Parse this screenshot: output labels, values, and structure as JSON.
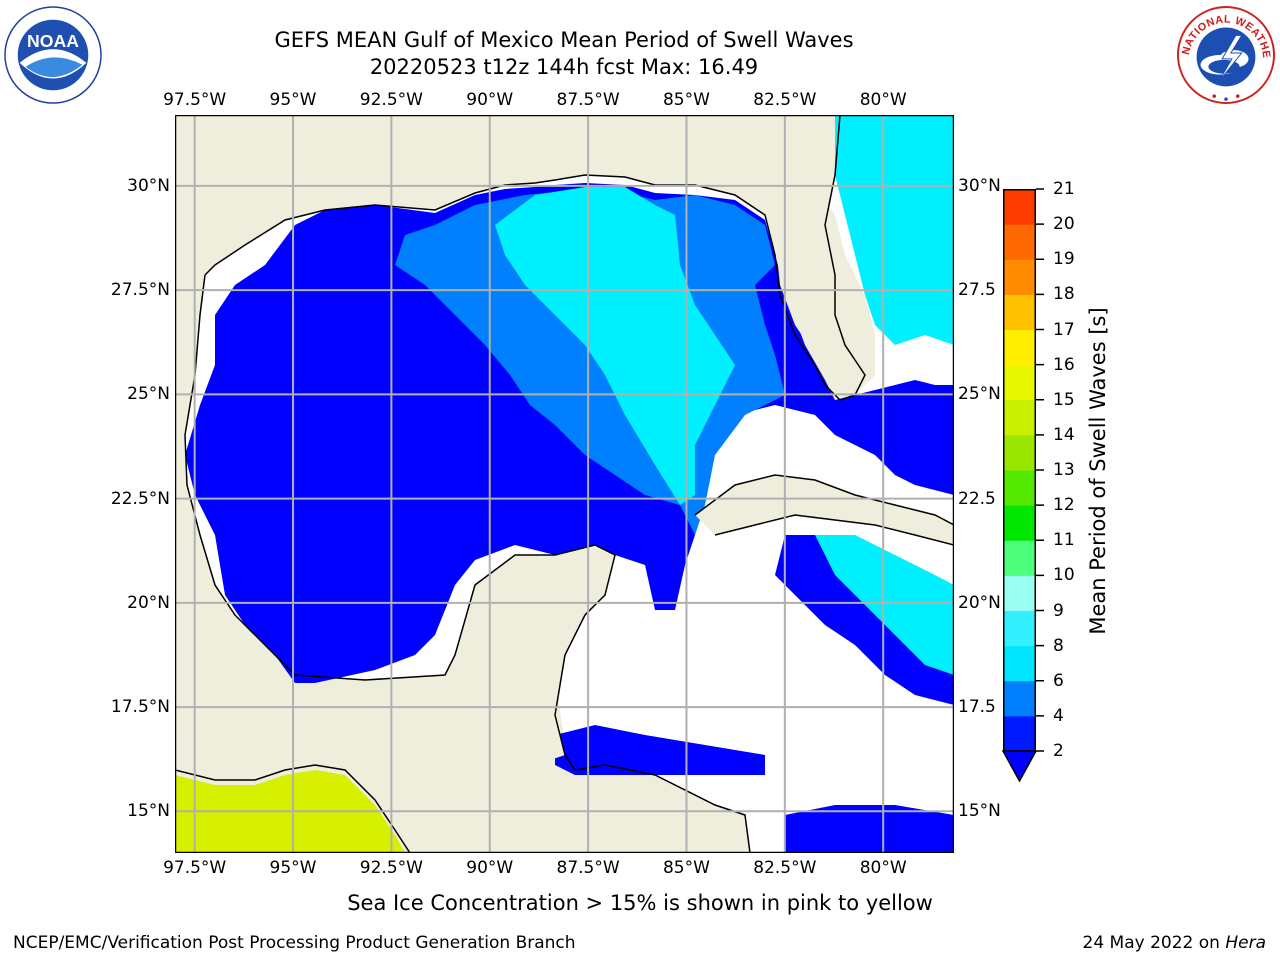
{
  "title": {
    "line1": "GEFS MEAN Gulf of Mexico Mean Period of Swell Waves",
    "line2": "20220523 t12z 144h fcst   Max: 16.49"
  },
  "map": {
    "lon_ticks": [
      "97.5°W",
      "95°W",
      "92.5°W",
      "90°W",
      "87.5°W",
      "85°W",
      "82.5°W",
      "80°W"
    ],
    "lon_values": [
      -97.5,
      -95,
      -92.5,
      -90,
      -87.5,
      -85,
      -82.5,
      -80
    ],
    "lat_ticks_left": [
      "30°N",
      "27.5°N",
      "25°N",
      "22.5°N",
      "20°N",
      "17.5°N",
      "15°N"
    ],
    "lat_ticks_right": [
      "30°N",
      "27.5",
      "25°N",
      "22.5",
      "20°N",
      "17.5",
      "15°N"
    ],
    "lat_values": [
      30,
      27.5,
      25,
      22.5,
      20,
      17.5,
      15
    ],
    "extent": {
      "lon": [
        -98,
        -78.2
      ],
      "lat": [
        14,
        31.7
      ]
    },
    "grid": true,
    "colors": {
      "land": "#efeedd",
      "ocean_missing": "#ffffff",
      "gridline": "#b0b0b0",
      "coast": "#000000"
    }
  },
  "colorbar": {
    "label": "Mean Period of Swell Waves [s]",
    "ticks": [
      "2",
      "4",
      "6",
      "8",
      "9",
      "10",
      "11",
      "12",
      "13",
      "14",
      "15",
      "16",
      "17",
      "18",
      "19",
      "20",
      "21"
    ],
    "colors": [
      "#0019ff",
      "#0080ff",
      "#00e5ff",
      "#33f0ff",
      "#99fff0",
      "#4dff7a",
      "#00e600",
      "#55e800",
      "#9ae600",
      "#c8f000",
      "#e6f700",
      "#ffee00",
      "#ffc000",
      "#ff8c00",
      "#ff6a00",
      "#ff3c00",
      "#ff0000"
    ],
    "extend_color": "#0000ff"
  },
  "note": "Sea Ice Concentration > 15% is shown in pink to yellow",
  "footer": {
    "left": "NCEP/EMC/Verification Post Processing Product Generation Branch",
    "right_prefix": "24 May 2022 on ",
    "right_machine": "Hera"
  },
  "logos": {
    "noaa": "NOAA",
    "nws": "NATIONAL WEATHER SERVICE"
  }
}
